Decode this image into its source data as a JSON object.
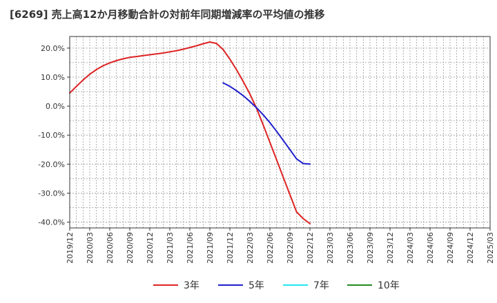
{
  "chart_data": {
    "type": "line",
    "title": "[6269]  売上高12か月移動合計の対前年同期増減率の平均値の推移",
    "xlabel": "",
    "ylabel": "",
    "ylim": [
      -42,
      24
    ],
    "yticks": [
      20,
      10,
      0,
      -10,
      -20,
      -30,
      -40
    ],
    "ytick_labels": [
      "20.0%",
      "10.0%",
      "0.0%",
      "-10.0%",
      "-20.0%",
      "-30.0%",
      "-40.0%"
    ],
    "x_ticks": [
      "2019/12",
      "2020/03",
      "2020/06",
      "2020/09",
      "2020/12",
      "2021/03",
      "2021/06",
      "2021/09",
      "2021/12",
      "2022/03",
      "2022/06",
      "2022/09",
      "2022/12",
      "2023/03",
      "2023/06",
      "2023/09",
      "2023/12",
      "2024/03",
      "2024/06",
      "2024/09",
      "2024/12",
      "2025/03"
    ],
    "grid": true,
    "legend_position": "bottom",
    "series": [
      {
        "name": "3年",
        "color": "#dd2222",
        "points": [
          {
            "x": "2019/12",
            "y": 4.5
          },
          {
            "x": "2020/01",
            "y": 6.8
          },
          {
            "x": "2020/02",
            "y": 9.0
          },
          {
            "x": "2020/03",
            "y": 11.0
          },
          {
            "x": "2020/04",
            "y": 12.6
          },
          {
            "x": "2020/05",
            "y": 13.9
          },
          {
            "x": "2020/06",
            "y": 14.9
          },
          {
            "x": "2020/07",
            "y": 15.7
          },
          {
            "x": "2020/08",
            "y": 16.3
          },
          {
            "x": "2020/09",
            "y": 16.8
          },
          {
            "x": "2020/10",
            "y": 17.1
          },
          {
            "x": "2020/11",
            "y": 17.4
          },
          {
            "x": "2020/12",
            "y": 17.7
          },
          {
            "x": "2021/01",
            "y": 18.0
          },
          {
            "x": "2021/02",
            "y": 18.3
          },
          {
            "x": "2021/03",
            "y": 18.7
          },
          {
            "x": "2021/04",
            "y": 19.1
          },
          {
            "x": "2021/05",
            "y": 19.6
          },
          {
            "x": "2021/06",
            "y": 20.2
          },
          {
            "x": "2021/07",
            "y": 20.8
          },
          {
            "x": "2021/08",
            "y": 21.5
          },
          {
            "x": "2021/09",
            "y": 22.1
          },
          {
            "x": "2021/10",
            "y": 21.6
          },
          {
            "x": "2021/11",
            "y": 19.5
          },
          {
            "x": "2021/12",
            "y": 16.2
          },
          {
            "x": "2022/01",
            "y": 12.5
          },
          {
            "x": "2022/02",
            "y": 8.5
          },
          {
            "x": "2022/03",
            "y": 4.2
          },
          {
            "x": "2022/04",
            "y": -0.8
          },
          {
            "x": "2022/05",
            "y": -6.5
          },
          {
            "x": "2022/06",
            "y": -12.5
          },
          {
            "x": "2022/07",
            "y": -18.5
          },
          {
            "x": "2022/08",
            "y": -24.5
          },
          {
            "x": "2022/09",
            "y": -30.5
          },
          {
            "x": "2022/10",
            "y": -36.5
          },
          {
            "x": "2022/11",
            "y": -38.8
          },
          {
            "x": "2022/12",
            "y": -40.5
          }
        ]
      },
      {
        "name": "5年",
        "color": "#1f1fcc",
        "points": [
          {
            "x": "2021/11",
            "y": 8.0
          },
          {
            "x": "2021/12",
            "y": 6.8
          },
          {
            "x": "2022/01",
            "y": 5.3
          },
          {
            "x": "2022/02",
            "y": 3.6
          },
          {
            "x": "2022/03",
            "y": 1.6
          },
          {
            "x": "2022/04",
            "y": -0.6
          },
          {
            "x": "2022/05",
            "y": -3.0
          },
          {
            "x": "2022/06",
            "y": -5.7
          },
          {
            "x": "2022/07",
            "y": -8.7
          },
          {
            "x": "2022/08",
            "y": -11.8
          },
          {
            "x": "2022/09",
            "y": -15.0
          },
          {
            "x": "2022/10",
            "y": -18.2
          },
          {
            "x": "2022/11",
            "y": -19.8
          },
          {
            "x": "2022/12",
            "y": -20.0
          }
        ]
      },
      {
        "name": "7年",
        "color": "#22e5f0",
        "points": []
      },
      {
        "name": "10年",
        "color": "#228b22",
        "points": []
      }
    ]
  }
}
